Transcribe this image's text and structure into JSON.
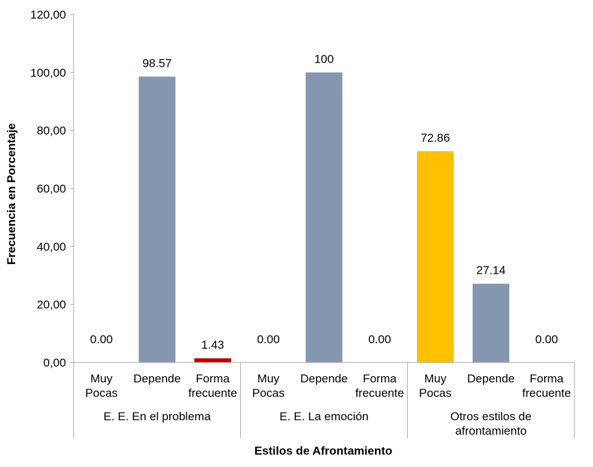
{
  "chart_data": {
    "type": "bar",
    "ylabel": "Frecuencia en Porcentaje",
    "xlabel": "Estilos de Afrontamiento",
    "ylim": [
      0,
      120
    ],
    "yticks": [
      "0,00",
      "20,00",
      "40,00",
      "60,00",
      "80,00",
      "100,00",
      "120,00"
    ],
    "ytick_values": [
      0,
      20,
      40,
      60,
      80,
      100,
      120
    ],
    "grid": false,
    "groups": [
      {
        "label": "E. E. En el problema",
        "label_lines": [
          "E. E. En el problema"
        ],
        "bars": [
          {
            "category_lines": [
              "Muy",
              "Pocas"
            ],
            "value": 0.0,
            "label": "0.00",
            "color": "#8497b0"
          },
          {
            "category_lines": [
              "Depende"
            ],
            "value": 98.57,
            "label": "98.57",
            "color": "#8497b0"
          },
          {
            "category_lines": [
              "Forma",
              "frecuente"
            ],
            "value": 1.43,
            "label": "1.43",
            "color": "#c00000"
          }
        ]
      },
      {
        "label": "E. E. La emoción",
        "label_lines": [
          "E. E. La emoción"
        ],
        "bars": [
          {
            "category_lines": [
              "Muy",
              "Pocas"
            ],
            "value": 0.0,
            "label": "0.00",
            "color": "#8497b0"
          },
          {
            "category_lines": [
              "Depende"
            ],
            "value": 100,
            "label": "100",
            "color": "#8497b0"
          },
          {
            "category_lines": [
              "Forma",
              "frecuente"
            ],
            "value": 0.0,
            "label": "0.00",
            "color": "#8497b0"
          }
        ]
      },
      {
        "label": "Otros estilos de afrontamiento",
        "label_lines": [
          "Otros estilos de",
          "afrontamiento"
        ],
        "bars": [
          {
            "category_lines": [
              "Muy",
              "Pocas"
            ],
            "value": 72.86,
            "label": "72.86",
            "color": "#ffc000"
          },
          {
            "category_lines": [
              "Depende"
            ],
            "value": 27.14,
            "label": "27.14",
            "color": "#8497b0"
          },
          {
            "category_lines": [
              "Forma",
              "frecuente"
            ],
            "value": 0.0,
            "label": "0.00",
            "color": "#8497b0"
          }
        ]
      }
    ],
    "colors": {
      "axis": "#a6a6a6",
      "bar_default": "#8497b0",
      "bar_highlight_red": "#c00000",
      "bar_highlight_yellow": "#ffc000"
    }
  }
}
